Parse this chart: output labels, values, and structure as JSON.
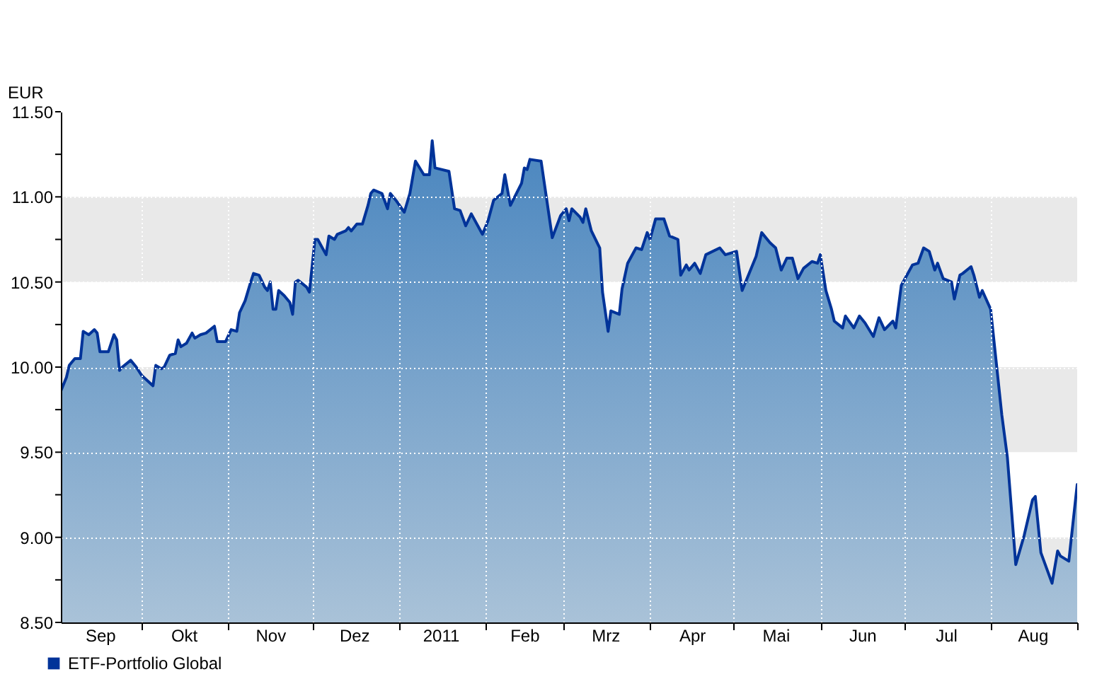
{
  "chart_data": {
    "type": "area",
    "ylabel": "EUR",
    "x": [
      "2010-09-02",
      "2010-09-04",
      "2010-09-05",
      "2010-09-07",
      "2010-09-09",
      "2010-09-10",
      "2010-09-11",
      "2010-09-12",
      "2010-09-14",
      "2010-09-15",
      "2010-09-16",
      "2010-09-19",
      "2010-09-21",
      "2010-09-22",
      "2010-09-23",
      "2010-09-24",
      "2010-09-27",
      "2010-09-29",
      "2010-10-01",
      "2010-10-03",
      "2010-10-05",
      "2010-10-06",
      "2010-10-08",
      "2010-10-09",
      "2010-10-11",
      "2010-10-13",
      "2010-10-14",
      "2010-10-15",
      "2010-10-17",
      "2010-10-19",
      "2010-10-20",
      "2010-10-22",
      "2010-10-24",
      "2010-10-27",
      "2010-10-28",
      "2010-10-31",
      "2010-11-02",
      "2010-11-04",
      "2010-11-05",
      "2010-11-07",
      "2010-11-09",
      "2010-11-10",
      "2010-11-12",
      "2010-11-14",
      "2010-11-15",
      "2010-11-16",
      "2010-11-17",
      "2010-11-18",
      "2010-11-19",
      "2010-11-21",
      "2010-11-23",
      "2010-11-24",
      "2010-11-25",
      "2010-11-26",
      "2010-11-29",
      "2010-11-30",
      "2010-12-02",
      "2010-12-03",
      "2010-12-06",
      "2010-12-07",
      "2010-12-09",
      "2010-12-10",
      "2010-12-13",
      "2010-12-14",
      "2010-12-15",
      "2010-12-17",
      "2010-12-19",
      "2010-12-21",
      "2010-12-22",
      "2010-12-23",
      "2010-12-26",
      "2010-12-28",
      "2010-12-29",
      "2010-12-31",
      "2011-01-03",
      "2011-01-05",
      "2011-01-07",
      "2011-01-10",
      "2011-01-12",
      "2011-01-13",
      "2011-01-14",
      "2011-01-19",
      "2011-01-21",
      "2011-01-23",
      "2011-01-25",
      "2011-01-27",
      "2011-01-31",
      "2011-02-02",
      "2011-02-04",
      "2011-02-07",
      "2011-02-08",
      "2011-02-10",
      "2011-02-14",
      "2011-02-15",
      "2011-02-16",
      "2011-02-17",
      "2011-02-21",
      "2011-02-25",
      "2011-02-28",
      "2011-03-02",
      "2011-03-03",
      "2011-03-04",
      "2011-03-07",
      "2011-03-08",
      "2011-03-09",
      "2011-03-11",
      "2011-03-14",
      "2011-03-15",
      "2011-03-17",
      "2011-03-18",
      "2011-03-21",
      "2011-03-22",
      "2011-03-24",
      "2011-03-27",
      "2011-03-29",
      "2011-03-31",
      "2011-04-01",
      "2011-04-03",
      "2011-04-06",
      "2011-04-08",
      "2011-04-11",
      "2011-04-12",
      "2011-04-14",
      "2011-04-15",
      "2011-04-17",
      "2011-04-19",
      "2011-04-21",
      "2011-04-26",
      "2011-04-28",
      "2011-05-02",
      "2011-05-04",
      "2011-05-09",
      "2011-05-11",
      "2011-05-14",
      "2011-05-16",
      "2011-05-18",
      "2011-05-20",
      "2011-05-22",
      "2011-05-24",
      "2011-05-26",
      "2011-05-29",
      "2011-05-31",
      "2011-06-01",
      "2011-06-03",
      "2011-06-05",
      "2011-06-06",
      "2011-06-09",
      "2011-06-10",
      "2011-06-13",
      "2011-06-15",
      "2011-06-17",
      "2011-06-20",
      "2011-06-22",
      "2011-06-24",
      "2011-06-27",
      "2011-06-28",
      "2011-06-30",
      "2011-07-04",
      "2011-07-06",
      "2011-07-08",
      "2011-07-10",
      "2011-07-12",
      "2011-07-13",
      "2011-07-15",
      "2011-07-18",
      "2011-07-19",
      "2011-07-21",
      "2011-07-22",
      "2011-07-25",
      "2011-07-26",
      "2011-07-28",
      "2011-07-29",
      "2011-08-01",
      "2011-08-05",
      "2011-08-07",
      "2011-08-10",
      "2011-08-13",
      "2011-08-16",
      "2011-08-17",
      "2011-08-19",
      "2011-08-23",
      "2011-08-25",
      "2011-08-26",
      "2011-08-29",
      "2011-09-01"
    ],
    "series": [
      {
        "name": "ETF-Portfolio Global",
        "color": "#003399",
        "values": [
          9.86,
          9.94,
          10.01,
          10.05,
          10.05,
          10.21,
          10.2,
          10.19,
          10.22,
          10.2,
          10.09,
          10.09,
          10.19,
          10.16,
          9.98,
          10.0,
          10.04,
          10.0,
          9.95,
          9.92,
          9.89,
          10.01,
          9.99,
          10.0,
          10.07,
          10.08,
          10.16,
          10.12,
          10.14,
          10.2,
          10.17,
          10.19,
          10.2,
          10.24,
          10.15,
          10.15,
          10.22,
          10.21,
          10.32,
          10.39,
          10.5,
          10.55,
          10.54,
          10.47,
          10.45,
          10.5,
          10.34,
          10.34,
          10.45,
          10.42,
          10.38,
          10.31,
          10.5,
          10.51,
          10.47,
          10.44,
          10.75,
          10.75,
          10.66,
          10.77,
          10.75,
          10.78,
          10.8,
          10.82,
          10.8,
          10.84,
          10.84,
          10.95,
          11.02,
          11.04,
          11.02,
          10.93,
          11.02,
          10.98,
          10.91,
          11.02,
          11.21,
          11.13,
          11.13,
          11.33,
          11.17,
          11.15,
          10.93,
          10.92,
          10.83,
          10.9,
          10.78,
          10.86,
          10.98,
          11.02,
          11.13,
          10.95,
          11.08,
          11.17,
          11.16,
          11.22,
          11.21,
          10.76,
          10.89,
          10.93,
          10.86,
          10.93,
          10.88,
          10.85,
          10.93,
          10.8,
          10.7,
          10.44,
          10.21,
          10.33,
          10.31,
          10.46,
          10.61,
          10.7,
          10.69,
          10.79,
          10.75,
          10.87,
          10.87,
          10.77,
          10.75,
          10.54,
          10.6,
          10.57,
          10.61,
          10.55,
          10.66,
          10.7,
          10.66,
          10.68,
          10.45,
          10.65,
          10.79,
          10.73,
          10.7,
          10.57,
          10.64,
          10.64,
          10.52,
          10.58,
          10.62,
          10.61,
          10.66,
          10.45,
          10.34,
          10.27,
          10.23,
          10.3,
          10.23,
          10.3,
          10.26,
          10.18,
          10.29,
          10.22,
          10.27,
          10.23,
          10.48,
          10.6,
          10.61,
          10.7,
          10.68,
          10.57,
          10.61,
          10.52,
          10.5,
          10.4,
          10.54,
          10.55,
          10.59,
          10.54,
          10.41,
          10.45,
          10.34,
          9.72,
          9.47,
          8.84,
          9.01,
          9.22,
          9.24,
          8.91,
          8.73,
          8.92,
          8.89,
          8.86,
          9.31
        ]
      }
    ],
    "xlim": [
      "2010-09-02",
      "2011-09-01"
    ],
    "xticks": [
      {
        "value": "2010-09-16",
        "label": "Sep"
      },
      {
        "value": "2010-10-01",
        "label": null
      },
      {
        "value": "2010-10-16",
        "label": "Okt"
      },
      {
        "value": "2010-11-01",
        "label": null
      },
      {
        "value": "2010-11-16",
        "label": "Nov"
      },
      {
        "value": "2010-12-01",
        "label": null
      },
      {
        "value": "2010-12-16",
        "label": "Dez"
      },
      {
        "value": "2011-01-01",
        "label": null
      },
      {
        "value": "2011-01-16",
        "label": "2011"
      },
      {
        "value": "2011-02-01",
        "label": null
      },
      {
        "value": "2011-02-15",
        "label": "Feb"
      },
      {
        "value": "2011-03-01",
        "label": null
      },
      {
        "value": "2011-03-16",
        "label": "Mrz"
      },
      {
        "value": "2011-04-01",
        "label": null
      },
      {
        "value": "2011-04-16",
        "label": "Apr"
      },
      {
        "value": "2011-05-01",
        "label": null
      },
      {
        "value": "2011-05-16",
        "label": "Mai"
      },
      {
        "value": "2011-06-01",
        "label": null
      },
      {
        "value": "2011-06-16",
        "label": "Jun"
      },
      {
        "value": "2011-07-01",
        "label": null
      },
      {
        "value": "2011-07-16",
        "label": "Jul"
      },
      {
        "value": "2011-08-01",
        "label": null
      },
      {
        "value": "2011-08-16",
        "label": "Aug"
      },
      {
        "value": "2011-09-01",
        "label": null
      }
    ],
    "ylim": [
      8.5,
      11.5
    ],
    "yticks": [
      {
        "value": 8.5,
        "label": "8.50"
      },
      {
        "value": 8.75,
        "label": null
      },
      {
        "value": 9,
        "label": "9.00"
      },
      {
        "value": 9.25,
        "label": null
      },
      {
        "value": 9.5,
        "label": "9.50"
      },
      {
        "value": 9.75,
        "label": null
      },
      {
        "value": 10,
        "label": "10.00"
      },
      {
        "value": 10.25,
        "label": null
      },
      {
        "value": 10.5,
        "label": "10.50"
      },
      {
        "value": 10.75,
        "label": null
      },
      {
        "value": 11,
        "label": "11.00"
      },
      {
        "value": 11.25,
        "label": null
      },
      {
        "value": 11.5,
        "label": "11.50"
      }
    ],
    "bands": [
      {
        "axis": "y",
        "from": 8.5,
        "to": 9.0,
        "color": "#e9e9e9"
      },
      {
        "axis": "y",
        "from": 9.5,
        "to": 10.0,
        "color": "#e9e9e9"
      },
      {
        "axis": "y",
        "from": 10.5,
        "to": 11.0,
        "color": "#e9e9e9"
      }
    ],
    "grid": true,
    "legend": "bottom left"
  }
}
